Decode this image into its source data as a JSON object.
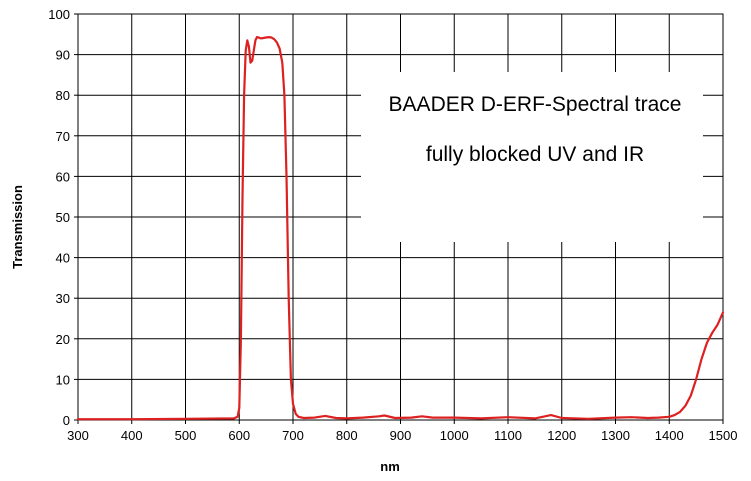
{
  "chart_data": {
    "type": "line",
    "xlabel": "nm",
    "ylabel": "Transmission",
    "xlim": [
      300,
      1500
    ],
    "ylim": [
      0,
      100
    ],
    "x_ticks": [
      300,
      400,
      500,
      600,
      700,
      800,
      900,
      1000,
      1100,
      1200,
      1300,
      1400,
      1500
    ],
    "y_ticks": [
      0,
      10,
      20,
      30,
      40,
      50,
      60,
      70,
      80,
      90,
      100
    ],
    "grid": true,
    "legend": "none",
    "annotations": [
      "BAADER D-ERF-Spectral trace",
      "fully blocked UV and IR"
    ],
    "colors": {
      "series": "#dd2020",
      "grid": "#000000",
      "background": "#ffffff"
    },
    "series": [
      {
        "color": "#dd2020",
        "x": [
          300,
          400,
          500,
          590,
          597,
          600,
          603,
          606,
          609,
          612,
          615,
          618,
          621,
          624,
          627,
          630,
          633,
          636,
          640,
          645,
          650,
          655,
          660,
          665,
          670,
          675,
          680,
          684,
          688,
          692,
          696,
          700,
          705,
          710,
          720,
          740,
          760,
          780,
          800,
          830,
          860,
          870,
          890,
          920,
          940,
          960,
          1000,
          1050,
          1100,
          1150,
          1180,
          1200,
          1250,
          1300,
          1330,
          1360,
          1380,
          1400,
          1410,
          1420,
          1430,
          1440,
          1450,
          1460,
          1470,
          1480,
          1490,
          1500
        ],
        "y": [
          0.2,
          0.2,
          0.3,
          0.4,
          0.8,
          3,
          20,
          55,
          80,
          91,
          93.5,
          92,
          88,
          88.5,
          91,
          93.5,
          94.3,
          94.2,
          94,
          94.1,
          94.2,
          94.3,
          94.2,
          93.8,
          93,
          91.5,
          88,
          80,
          60,
          30,
          10,
          4,
          1.5,
          0.8,
          0.5,
          0.6,
          1.0,
          0.5,
          0.4,
          0.6,
          0.9,
          1.1,
          0.5,
          0.6,
          0.9,
          0.6,
          0.6,
          0.4,
          0.7,
          0.4,
          1.2,
          0.5,
          0.3,
          0.6,
          0.7,
          0.5,
          0.6,
          0.8,
          1.2,
          2,
          3.5,
          6,
          10,
          15,
          19,
          21.5,
          23.5,
          26.5
        ]
      }
    ]
  }
}
